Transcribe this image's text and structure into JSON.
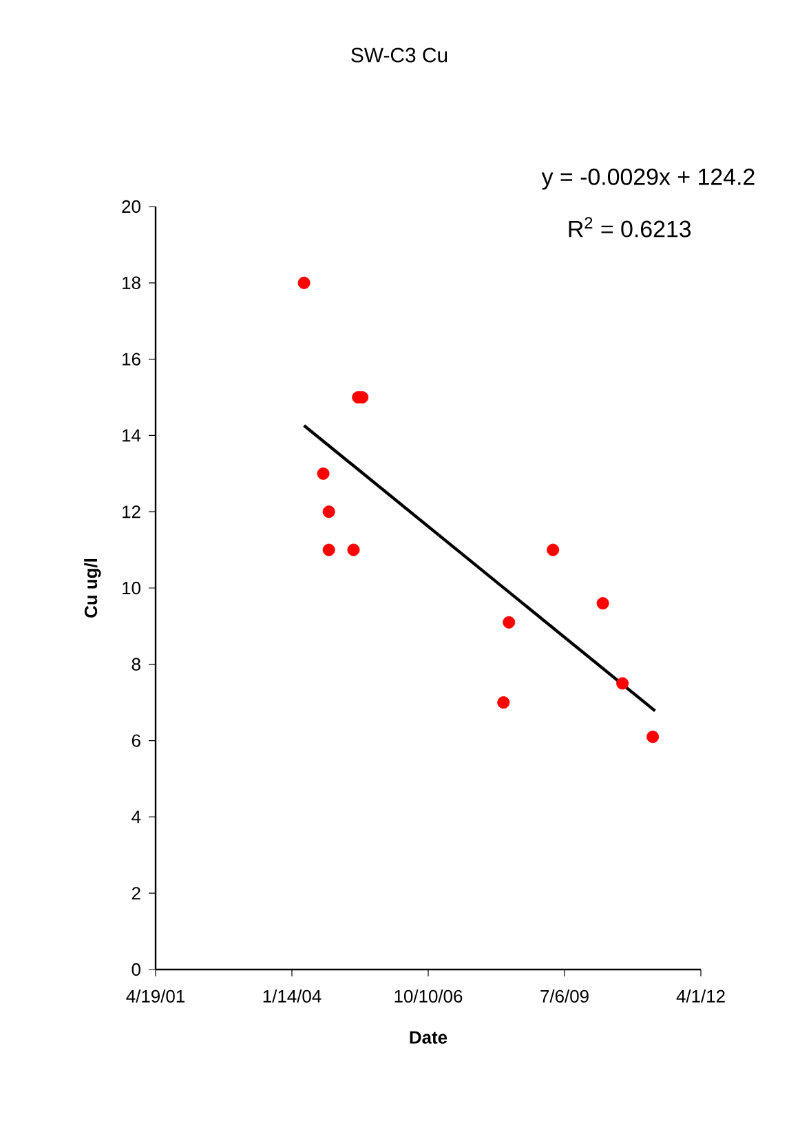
{
  "chart_data": {
    "type": "scatter",
    "title": "SW-C3   Cu",
    "xlabel": "Date",
    "ylabel": "Cu ug/l",
    "annotations": [
      "y = -0.0029x + 124.2",
      "R$^{2}$ = 0.6213"
    ],
    "xlim": [
      "2001-04-19",
      "2012-04-01"
    ],
    "xticks": [
      {
        "value": "2001-04-19",
        "label": "4/19/01"
      },
      {
        "value": "2004-01-14",
        "label": "1/14/04"
      },
      {
        "value": "2006-10-10",
        "label": "10/10/06"
      },
      {
        "value": "2009-07-06",
        "label": "7/6/09"
      },
      {
        "value": "2012-04-01",
        "label": "4/1/12"
      }
    ],
    "ylim": [
      0,
      20
    ],
    "yticks": [
      0,
      2,
      4,
      6,
      8,
      10,
      12,
      14,
      16,
      18,
      20
    ],
    "grid": false,
    "series": [
      {
        "marker": "circle",
        "color": "#ff0000",
        "x": [
          "2004-04-12",
          "2004-08-31",
          "2004-10-11",
          "2004-10-11",
          "2005-04-10",
          "2005-05-14",
          "2005-06-13",
          "2008-04-14",
          "2008-05-24",
          "2009-04-12",
          "2010-04-13",
          "2010-09-04",
          "2011-04-14"
        ],
        "values": [
          18,
          13,
          12,
          11,
          11,
          15,
          15,
          7,
          9.1,
          11,
          9.6,
          7.5,
          6.1
        ]
      },
      {
        "type": "line",
        "color": "#000000",
        "marker": "none",
        "line_style": "solid",
        "x": [
          "2004-04-12",
          "2011-05-01"
        ],
        "values": [
          14.26,
          6.78
        ]
      }
    ]
  }
}
